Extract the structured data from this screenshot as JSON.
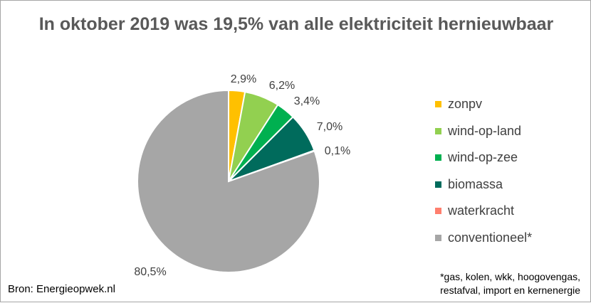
{
  "chart_data": {
    "type": "pie",
    "title": "In oktober 2019 was 19,5% van alle elektriciteit hernieuwbaar",
    "legend_position": "right",
    "slices": [
      {
        "name": "zonpv",
        "value": 2.9,
        "label": "2,9%",
        "color": "#ffc000"
      },
      {
        "name": "wind-op-land",
        "value": 6.2,
        "label": "6,2%",
        "color": "#92d050"
      },
      {
        "name": "wind-op-zee",
        "value": 3.4,
        "label": "3,4%",
        "color": "#00b050"
      },
      {
        "name": "biomassa",
        "value": 7.0,
        "label": "7,0%",
        "color": "#006b5c"
      },
      {
        "name": "waterkracht",
        "value": 0.1,
        "label": "0,1%",
        "color": "#ff7f6e"
      },
      {
        "name": "conventioneel*",
        "value": 80.5,
        "label": "80,5%",
        "color": "#a6a6a6"
      }
    ]
  },
  "source": "Bron: Energieopwek.nl",
  "footnote_line1": "*gas, kolen, wkk, hoogovengas,",
  "footnote_line2": "restafval, import en kernenergie"
}
